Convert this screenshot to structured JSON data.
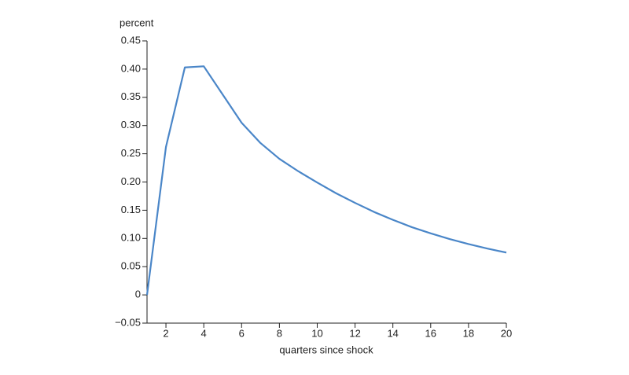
{
  "chart_data": {
    "type": "line",
    "y_unit_label": "percent",
    "x_label": "quarters since shock",
    "x": [
      1,
      2,
      3,
      4,
      5,
      6,
      7,
      8,
      9,
      10,
      11,
      12,
      13,
      14,
      15,
      16,
      17,
      18,
      19,
      20
    ],
    "series": [
      {
        "color": "#4a86c8",
        "values": [
          0,
          0.262,
          0.403,
          0.405,
          0.355,
          0.305,
          0.269,
          0.241,
          0.219,
          0.199,
          0.18,
          0.163,
          0.147,
          0.133,
          0.12,
          0.109,
          0.099,
          0.09,
          0.082,
          0.075
        ]
      }
    ],
    "xlim": [
      1,
      20
    ],
    "xticks": [
      2,
      4,
      6,
      8,
      10,
      12,
      14,
      16,
      18,
      20
    ],
    "ylim": [
      -0.05,
      0.45
    ],
    "yticks": [
      {
        "value": -0.05,
        "label": "−0.05"
      },
      0,
      0.05,
      {
        "value": 0.1,
        "label": "0.10"
      },
      0.15,
      {
        "value": 0.2,
        "label": "0.20"
      },
      0.25,
      {
        "value": 0.3,
        "label": "0.30"
      },
      0.35,
      {
        "value": 0.4,
        "label": "0.40"
      },
      0.45
    ],
    "grid": false
  }
}
